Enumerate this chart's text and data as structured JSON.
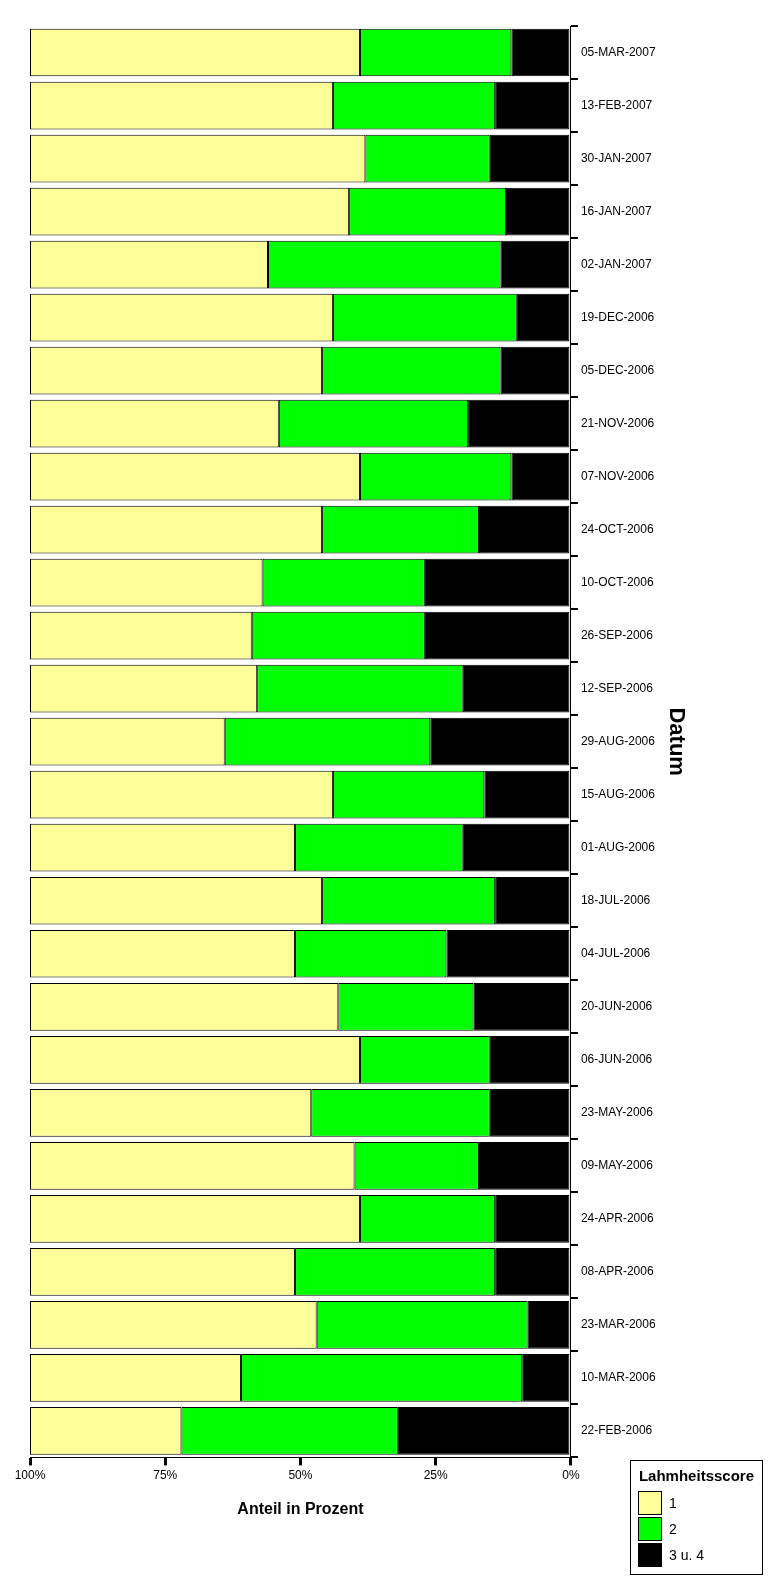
{
  "chart_data": {
    "type": "bar",
    "orientation": "horizontal",
    "stacked": true,
    "xlabel": "Anteil in Prozent",
    "ylabel": "Datum",
    "legend_title": "Lahmheitsscore",
    "legend": "bottom right",
    "categories": [
      "05-MAR-2007",
      "13-FEB-2007",
      "30-JAN-2007",
      "16-JAN-2007",
      "02-JAN-2007",
      "19-DEC-2006",
      "05-DEC-2006",
      "21-NOV-2006",
      "07-NOV-2006",
      "24-OCT-2006",
      "10-OCT-2006",
      "26-SEP-2006",
      "12-SEP-2006",
      "29-AUG-2006",
      "15-AUG-2006",
      "01-AUG-2006",
      "18-JUL-2006",
      "04-JUL-2006",
      "20-JUN-2006",
      "06-JUN-2006",
      "23-MAY-2006",
      "09-MAY-2006",
      "24-APR-2006",
      "08-APR-2006",
      "23-MAR-2006",
      "10-MAR-2006",
      "22-FEB-2006"
    ],
    "series": [
      {
        "name": "3 u. 4",
        "color": "#000000",
        "values": [
          11,
          14,
          15,
          12,
          13,
          10,
          13,
          19,
          11,
          17,
          27,
          27,
          20,
          26,
          16,
          20,
          14,
          23,
          18,
          15,
          15,
          17,
          14,
          14,
          8,
          9,
          32
        ]
      },
      {
        "name": "2",
        "color": "#00ff00",
        "values": [
          28,
          30,
          23,
          29,
          43,
          34,
          33,
          35,
          28,
          29,
          30,
          32,
          38,
          38,
          28,
          31,
          32,
          28,
          25,
          24,
          33,
          23,
          25,
          37,
          39,
          52,
          40
        ]
      },
      {
        "name": "1",
        "color": "#ffff99",
        "values": [
          61,
          56,
          62,
          59,
          44,
          56,
          54,
          46,
          61,
          54,
          43,
          41,
          42,
          36,
          56,
          49,
          54,
          49,
          57,
          61,
          52,
          60,
          61,
          49,
          53,
          39,
          28
        ]
      }
    ],
    "xlim": [
      100,
      0
    ],
    "xticks": [
      {
        "value": 0,
        "label": "0%"
      },
      {
        "value": 25,
        "label": "25%"
      },
      {
        "value": 50,
        "label": "50%"
      },
      {
        "value": 75,
        "label": "75%"
      },
      {
        "value": 100,
        "label": "100%"
      }
    ]
  }
}
